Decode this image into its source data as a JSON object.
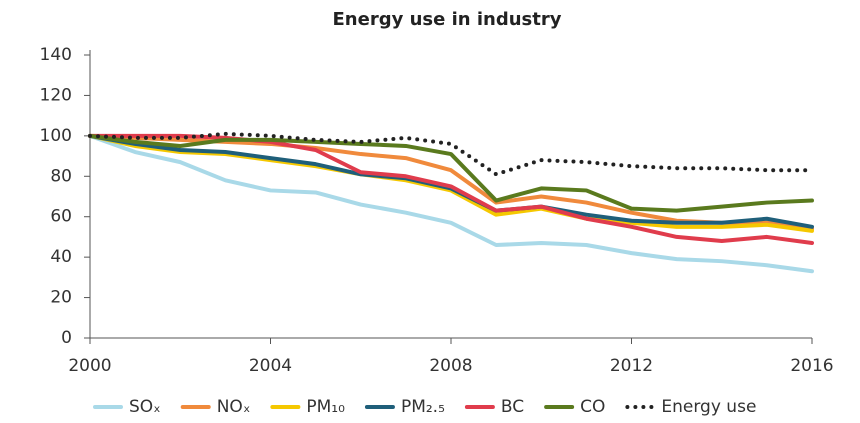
{
  "chart_data": {
    "type": "line",
    "title": "Energy use in industry",
    "x": [
      2000,
      2001,
      2002,
      2003,
      2004,
      2005,
      2006,
      2007,
      2008,
      2009,
      2010,
      2011,
      2012,
      2013,
      2014,
      2015,
      2016
    ],
    "xlim": [
      2000,
      2016
    ],
    "xticks": [
      2000,
      2004,
      2008,
      2012,
      2016
    ],
    "ylim": [
      0,
      140
    ],
    "yticks": [
      0,
      20,
      40,
      60,
      80,
      100,
      120,
      140
    ],
    "grid": false,
    "legend": "bottom",
    "series": [
      {
        "name": "SOₓ",
        "color": "#a9d9e8",
        "values": [
          100,
          92,
          87,
          78,
          73,
          72,
          66,
          62,
          57,
          46,
          47,
          46,
          42,
          39,
          38,
          36,
          33
        ]
      },
      {
        "name": "NOₓ",
        "color": "#f08a3c",
        "values": [
          100,
          99,
          98,
          97,
          96,
          94,
          91,
          89,
          83,
          67,
          70,
          67,
          62,
          58,
          57,
          57,
          54
        ]
      },
      {
        "name": "PM₁₀",
        "color": "#f5c800",
        "values": [
          100,
          95,
          92,
          91,
          88,
          85,
          81,
          78,
          73,
          61,
          64,
          59,
          57,
          55,
          55,
          56,
          53
        ]
      },
      {
        "name": "PM₂.₅",
        "color": "#1f5f7a",
        "values": [
          100,
          96,
          93,
          92,
          89,
          86,
          81,
          79,
          74,
          63,
          65,
          61,
          58,
          57,
          57,
          59,
          55
        ]
      },
      {
        "name": "BC",
        "color": "#e03c4c",
        "values": [
          100,
          100,
          100,
          99,
          97,
          93,
          82,
          80,
          75,
          63,
          65,
          59,
          55,
          50,
          48,
          50,
          47
        ]
      },
      {
        "name": "CO",
        "color": "#5a7a1e",
        "values": [
          100,
          97,
          95,
          98,
          98,
          97,
          96,
          95,
          91,
          68,
          74,
          73,
          64,
          63,
          65,
          67,
          68
        ]
      },
      {
        "name": "Energy use",
        "color": "#222222",
        "line_style": "dotted",
        "values": [
          100,
          99,
          99,
          101,
          100,
          98,
          97,
          99,
          96,
          81,
          88,
          87,
          85,
          84,
          84,
          83,
          83
        ]
      }
    ]
  }
}
